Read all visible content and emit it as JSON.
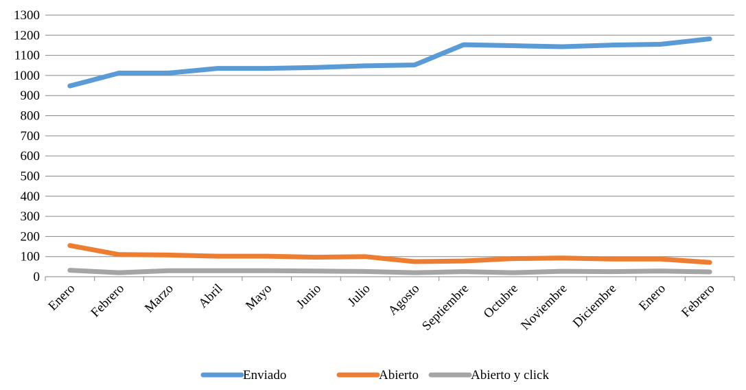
{
  "chart_data": {
    "type": "line",
    "title": "",
    "xlabel": "",
    "ylabel": "",
    "categories": [
      "Enero",
      "Febrero",
      "Marzo",
      "Abril",
      "Mayo",
      "Junio",
      "Julio",
      "Agosto",
      "Septiembre",
      "Octubre",
      "Noviembre",
      "Diciembre",
      "Enero",
      "Febrero"
    ],
    "ylim": [
      0,
      1300
    ],
    "yticks": [
      0,
      100,
      200,
      300,
      400,
      500,
      600,
      700,
      800,
      900,
      1000,
      1100,
      1200,
      1300
    ],
    "grid": true,
    "legend_position": "bottom",
    "series": [
      {
        "name": "Enviado",
        "color": "#5B9BD5",
        "values": [
          948,
          1012,
          1012,
          1035,
          1035,
          1040,
          1048,
          1052,
          1153,
          1148,
          1143,
          1151,
          1155,
          1182
        ]
      },
      {
        "name": "Abierto",
        "color": "#ED7D31",
        "values": [
          155,
          110,
          108,
          102,
          102,
          97,
          100,
          75,
          78,
          90,
          93,
          88,
          88,
          71
        ]
      },
      {
        "name": "Abierto y click",
        "color": "#A5A5A5",
        "values": [
          32,
          20,
          30,
          30,
          30,
          28,
          26,
          20,
          25,
          20,
          27,
          25,
          28,
          24
        ]
      }
    ]
  }
}
